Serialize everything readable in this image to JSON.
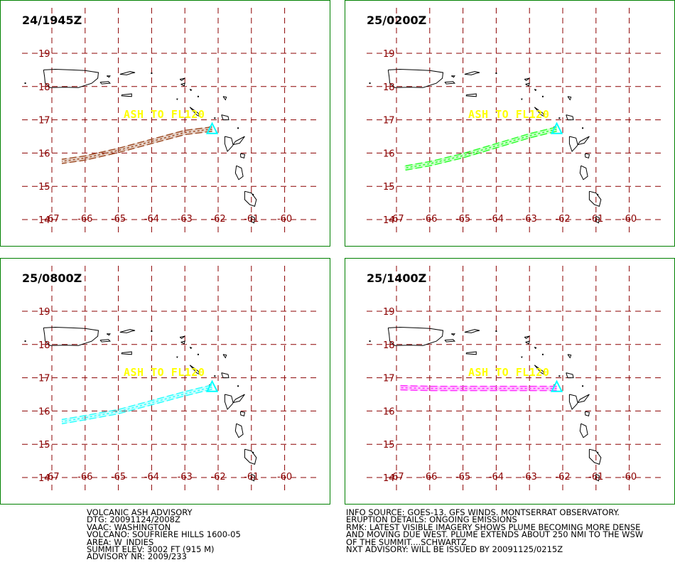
{
  "map": {
    "lon_ticks": [
      -67,
      -66,
      -65,
      -64,
      -63,
      -62,
      -61,
      -60
    ],
    "lat_ticks": [
      19,
      18,
      17,
      16,
      15,
      14
    ],
    "grid_color": "#8b0000",
    "border_color": "#008000",
    "coast_color": "#000000",
    "volcano": {
      "name": "SOUFRIERE HILLS",
      "lon": -62.18,
      "lat": 16.72,
      "color": "#00ffff"
    },
    "ash_label": "ASH TO FL120",
    "ash_label_color": "#ffff00"
  },
  "panels": [
    {
      "time": "24/1945Z",
      "plume_color": "#a0522d",
      "plume": [
        [
          -62.18,
          16.72
        ],
        [
          -63.0,
          16.62
        ],
        [
          -64.0,
          16.35
        ],
        [
          -65.0,
          16.08
        ],
        [
          -66.0,
          15.85
        ],
        [
          -66.7,
          15.75
        ]
      ]
    },
    {
      "time": "25/0200Z",
      "plume_color": "#33ff33",
      "plume": [
        [
          -62.18,
          16.72
        ],
        [
          -63.0,
          16.52
        ],
        [
          -64.0,
          16.22
        ],
        [
          -65.0,
          15.92
        ],
        [
          -66.0,
          15.68
        ],
        [
          -66.75,
          15.55
        ]
      ]
    },
    {
      "time": "25/0800Z",
      "plume_color": "#33ffff",
      "plume": [
        [
          -62.18,
          16.72
        ],
        [
          -63.0,
          16.52
        ],
        [
          -64.0,
          16.25
        ],
        [
          -65.0,
          15.98
        ],
        [
          -66.0,
          15.8
        ],
        [
          -66.7,
          15.68
        ]
      ]
    },
    {
      "time": "25/1400Z",
      "plume_color": "#ff33ff",
      "plume": [
        [
          -62.18,
          16.68
        ],
        [
          -63.0,
          16.68
        ],
        [
          -64.0,
          16.68
        ],
        [
          -65.0,
          16.68
        ],
        [
          -66.0,
          16.68
        ],
        [
          -66.9,
          16.7
        ]
      ]
    }
  ],
  "footer_left": [
    "VOLCANIC ASH ADVISORY",
    "DTG: 20091124/2008Z",
    "VAAC: WASHINGTON",
    "VOLCANO: SOUFRIERE HILLS 1600-05",
    "AREA: W_INDIES",
    "SUMMIT ELEV: 3002 FT (915 M)",
    "ADVISORY NR: 2009/233"
  ],
  "footer_right": [
    "INFO SOURCE: GOES-13. GFS WINDS. MONTSERRAT OBSERVATORY.",
    "ERUPTION DETAILS: ONGOING EMISSIONS",
    "RMK: LATEST VISIBLE IMAGERY SHOWS PLUME BECOMING MORE DENSE",
    "AND MOVING DUE WEST. PLUME EXTENDS ABOUT 250 NMI TO THE WSW",
    "OF THE SUMMIT....SCHWARTZ",
    "NXT ADVISORY: WILL BE ISSUED BY 20091125/0215Z"
  ]
}
